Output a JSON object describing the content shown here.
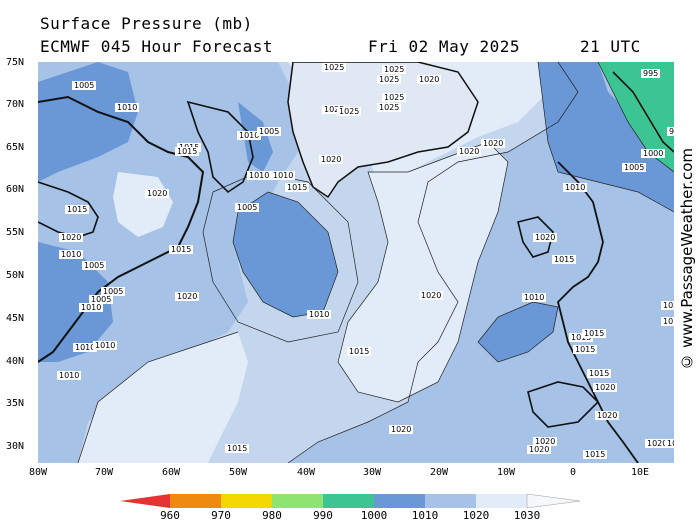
{
  "header": {
    "title": "Surface Pressure (mb)",
    "model": "ECMWF 045 Hour Forecast",
    "date": "Fri 02 May 2025",
    "time": "21 UTC"
  },
  "watermark": "© www.PassageWeather.com",
  "map": {
    "lat_labels": [
      "75N",
      "70N",
      "65N",
      "60N",
      "55N",
      "50N",
      "45N",
      "40N",
      "35N",
      "30N"
    ],
    "lon_labels": [
      "80W",
      "70W",
      "60W",
      "50W",
      "40W",
      "30W",
      "20W",
      "10W",
      "0",
      "10E"
    ],
    "isobar_labels": [
      {
        "text": "1005"
      },
      {
        "text": "1010"
      },
      {
        "text": "1015"
      },
      {
        "text": "1010"
      },
      {
        "text": "1005"
      },
      {
        "text": "1015"
      },
      {
        "text": "1020"
      },
      {
        "text": "1010"
      },
      {
        "text": "1005"
      },
      {
        "text": "1005"
      },
      {
        "text": "1020"
      },
      {
        "text": "1015"
      },
      {
        "text": "1020"
      },
      {
        "text": "1010"
      },
      {
        "text": "1015"
      },
      {
        "text": "1010"
      },
      {
        "text": "1010"
      },
      {
        "text": "1010"
      },
      {
        "text": "1010"
      },
      {
        "text": "1005"
      },
      {
        "text": "1010"
      },
      {
        "text": "1015"
      },
      {
        "text": "1005"
      },
      {
        "text": "1020"
      },
      {
        "text": "1010"
      },
      {
        "text": "1015"
      },
      {
        "text": "1020"
      },
      {
        "text": "1020"
      },
      {
        "text": "1015"
      },
      {
        "text": "1020"
      },
      {
        "text": "1025"
      },
      {
        "text": "1025"
      },
      {
        "text": "1025"
      },
      {
        "text": "1025"
      },
      {
        "text": "1020"
      },
      {
        "text": "1025"
      },
      {
        "text": "1025"
      },
      {
        "text": "1025"
      },
      {
        "text": "1020"
      },
      {
        "text": "1020"
      },
      {
        "text": "995"
      },
      {
        "text": "99"
      },
      {
        "text": "1000"
      },
      {
        "text": "1005"
      },
      {
        "text": "1010"
      },
      {
        "text": "1020"
      },
      {
        "text": "1015"
      },
      {
        "text": "1010"
      },
      {
        "text": "1015"
      },
      {
        "text": "1015"
      },
      {
        "text": "1015"
      },
      {
        "text": "1015"
      },
      {
        "text": "1020"
      },
      {
        "text": "1020"
      },
      {
        "text": "1020"
      },
      {
        "text": "1020"
      },
      {
        "text": "1020"
      },
      {
        "text": "102"
      },
      {
        "text": "1020"
      },
      {
        "text": "1015"
      },
      {
        "text": "1015"
      }
    ]
  },
  "legend": {
    "labels": [
      "960",
      "970",
      "980",
      "990",
      "1000",
      "1010",
      "1020",
      "1030"
    ],
    "colors": [
      "#e63232",
      "#ee8a10",
      "#f2d800",
      "#8ee46e",
      "#3cc592",
      "#6a97d6",
      "#a6c2e6",
      "#e2ebf8"
    ]
  },
  "colors": {
    "band_995_1000": "#3cc592",
    "band_1000_1010": "#6a97d6",
    "band_1010_1020": "#a6c2e6",
    "band_1020_1030": "#e2ebf8",
    "land": "#111111"
  }
}
